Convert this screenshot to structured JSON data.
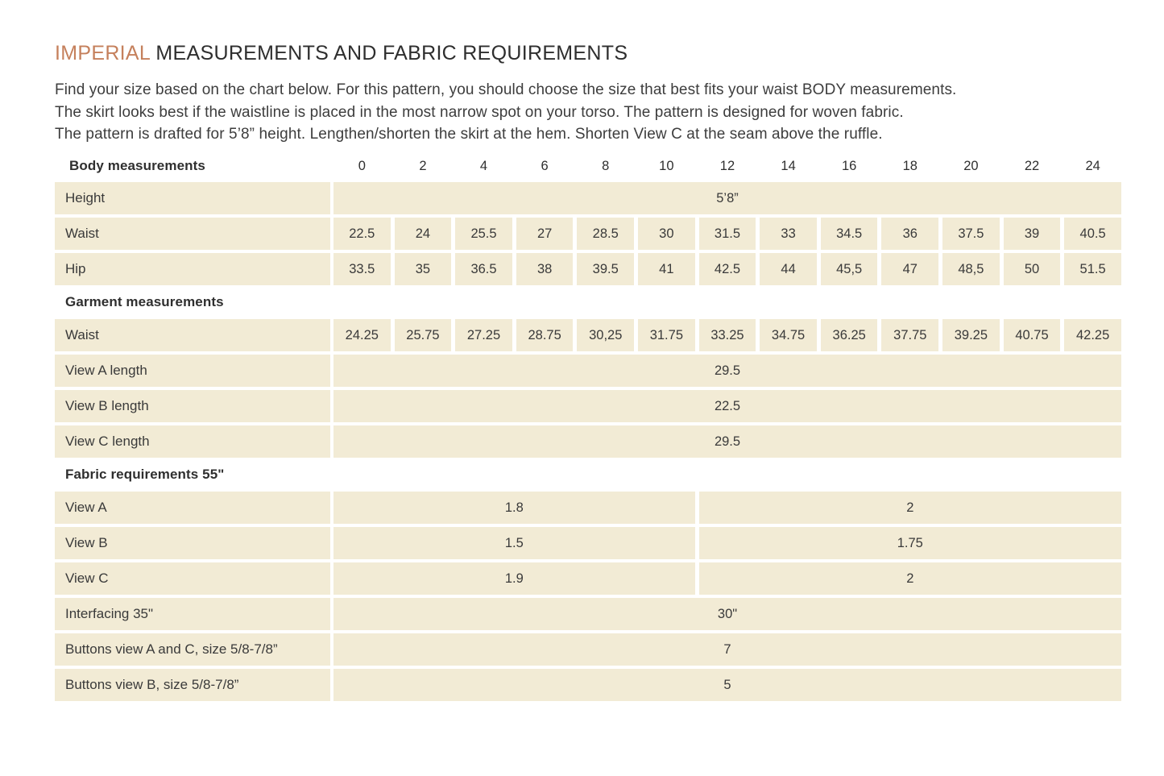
{
  "colors": {
    "accent": "#C5805C",
    "cell_bg": "#F2EBD5",
    "text": "#3A3A3A"
  },
  "header": {
    "title_accent": "IMPERIAL",
    "title_rest": " MEASUREMENTS AND FABRIC REQUIREMENTS",
    "intro_lines": [
      "Find your size based on the chart below. For this pattern, you should choose the size that best fits your waist BODY measurements.",
      "The skirt looks best if the waistline is placed in the most narrow spot on your torso. The pattern is designed for woven fabric.",
      "The pattern is drafted for 5’8” height. Lengthen/shorten the skirt at the hem. Shorten View C at the seam above the ruffle."
    ]
  },
  "table": {
    "sizes_header_label": "Body measurements",
    "sizes": [
      "0",
      "2",
      "4",
      "6",
      "8",
      "10",
      "12",
      "14",
      "16",
      "18",
      "20",
      "22",
      "24"
    ],
    "rows": [
      {
        "type": "sizes-header",
        "label": "Body measurements"
      },
      {
        "type": "span",
        "label": "Height",
        "value": "5’8”"
      },
      {
        "type": "cells",
        "label": "Waist",
        "values": [
          "22.5",
          "24",
          "25.5",
          "27",
          "28.5",
          "30",
          "31.5",
          "33",
          "34.5",
          "36",
          "37.5",
          "39",
          "40.5"
        ]
      },
      {
        "type": "cells",
        "label": "Hip",
        "values": [
          "33.5",
          "35",
          "36.5",
          "38",
          "39.5",
          "41",
          "42.5",
          "44",
          "45,5",
          "47",
          "48,5",
          "50",
          "51.5"
        ]
      },
      {
        "type": "section",
        "label": "Garment measurements"
      },
      {
        "type": "cells",
        "label": "Waist",
        "values": [
          "24.25",
          "25.75",
          "27.25",
          "28.75",
          "30,25",
          "31.75",
          "33.25",
          "34.75",
          "36.25",
          "37.75",
          "39.25",
          "40.75",
          "42.25"
        ]
      },
      {
        "type": "span",
        "label": "View A length",
        "value": "29.5"
      },
      {
        "type": "span",
        "label": "View B length",
        "value": "22.5"
      },
      {
        "type": "span",
        "label": "View C length",
        "value": "29.5"
      },
      {
        "type": "section",
        "label": "Fabric requirements 55\""
      },
      {
        "type": "split",
        "label": "View A",
        "left": "1.8",
        "right": "2"
      },
      {
        "type": "split",
        "label": "View B",
        "left": "1.5",
        "right": "1.75"
      },
      {
        "type": "split",
        "label": "View C",
        "left": "1.9",
        "right": "2"
      },
      {
        "type": "span",
        "label": "Interfacing 35\"",
        "value": "30\""
      },
      {
        "type": "span",
        "label": "Buttons view A and C, size 5/8-7/8”",
        "value": "7"
      },
      {
        "type": "span",
        "label": "Buttons view B, size 5/8-7/8”",
        "value": "5"
      }
    ]
  }
}
